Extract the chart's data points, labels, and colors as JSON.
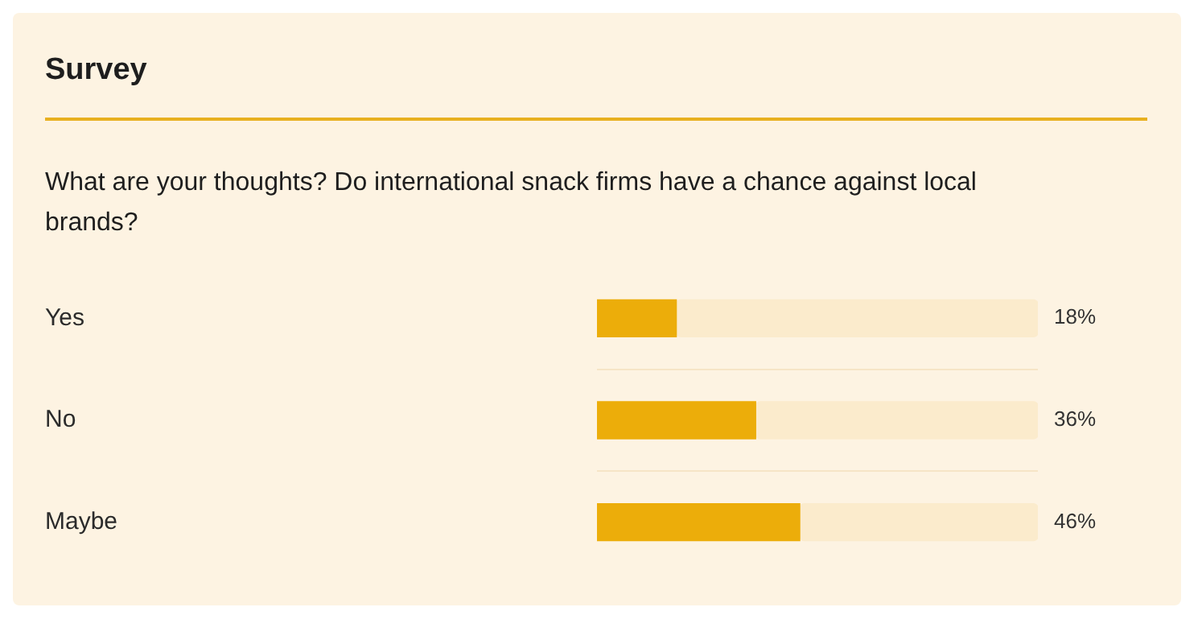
{
  "chart_data": {
    "type": "bar",
    "orientation": "horizontal",
    "title": "Survey",
    "subtitle": "What are your thoughts? Do international snack firms have a chance against local brands?",
    "categories": [
      "Yes",
      "No",
      "Maybe"
    ],
    "series": [
      {
        "color": "#ecad0a",
        "values": [
          18,
          36,
          46
        ],
        "value_labels": [
          "18%",
          "36%",
          "46%"
        ]
      },
      {
        "color": "#fbebcc",
        "values": [
          82,
          64,
          54
        ]
      }
    ],
    "stacked": true,
    "xlim": [
      0,
      100
    ],
    "tick_labels": "y",
    "grid": "y",
    "legend": false
  }
}
